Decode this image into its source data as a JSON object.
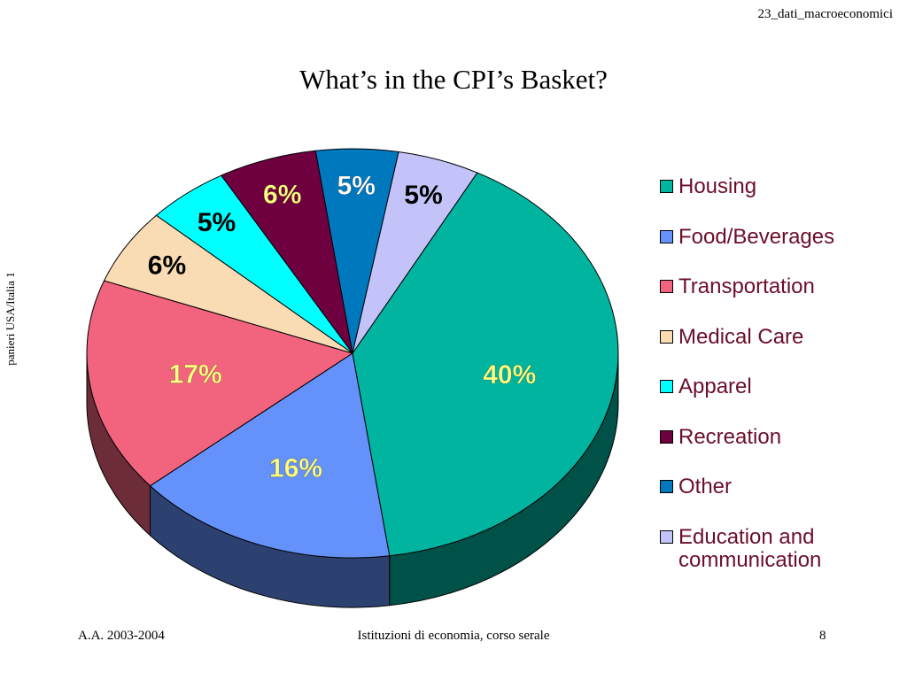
{
  "header": {
    "file_name": "23_dati_macroeconomici"
  },
  "side_label": "panieri USA/Italia 1",
  "footer": {
    "left": "A.A. 2003-2004",
    "center": "Istituzioni di economia, corso serale",
    "right": "8"
  },
  "chart_data": {
    "type": "pie",
    "title": "What’s in the CPI’s Basket?",
    "legend_position": "right",
    "series": [
      {
        "name": "Housing",
        "value": 40,
        "label": "40%",
        "color": "#00b4a0",
        "label_color": "#ffff80"
      },
      {
        "name": "Food/Beverages",
        "value": 16,
        "label": "16%",
        "color": "#6491fa",
        "label_color": "#ffff80"
      },
      {
        "name": "Transportation",
        "value": 17,
        "label": "17%",
        "color": "#f2647d",
        "label_color": "#ffff80"
      },
      {
        "name": "Medical Care",
        "value": 6,
        "label": "6%",
        "color": "#fadcb4",
        "label_color": "#000000"
      },
      {
        "name": "Apparel",
        "value": 5,
        "label": "5%",
        "color": "#00ffff",
        "label_color": "#000000"
      },
      {
        "name": "Recreation",
        "value": 6,
        "label": "6%",
        "color": "#6e0040",
        "label_color": "#ffff80"
      },
      {
        "name": "Other",
        "value": 5,
        "label": "5%",
        "color": "#0078be",
        "label_color": "#ffffff"
      },
      {
        "name": "Education and communication",
        "value": 5,
        "label": "5%",
        "color": "#c3c3fa",
        "label_color": "#000000"
      }
    ]
  }
}
